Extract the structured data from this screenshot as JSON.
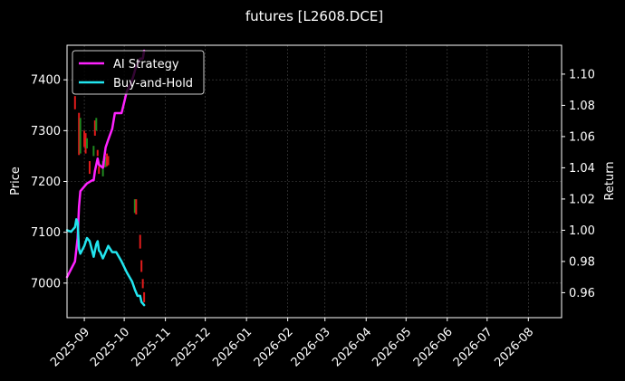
{
  "chart_data": {
    "type": "line",
    "title": "futures [L2608.DCE]",
    "xlabel": "",
    "ylabel": "Price",
    "y2label": "Return",
    "x_ticks": [
      "2025-09",
      "2025-10",
      "2025-11",
      "2025-12",
      "2026-01",
      "2026-02",
      "2026-03",
      "2026-04",
      "2026-05",
      "2026-06",
      "2026-07",
      "2026-08"
    ],
    "y_ticks": [
      7000,
      7100,
      7200,
      7300,
      7400
    ],
    "y2_ticks": [
      "0.96",
      "0.98",
      "1.00",
      "1.02",
      "1.04",
      "1.06",
      "1.08",
      "1.10"
    ],
    "ylim": [
      6932,
      7468
    ],
    "y2lim": [
      0.944,
      1.1185
    ],
    "xlim": [
      "2025-08-19",
      "2026-08-26"
    ],
    "grid": true,
    "legend_placement": "top-left",
    "colors": {
      "background": "#000000",
      "up_candle": "#1f8a1f",
      "down_candle": "#e01b1b",
      "ai_strategy": "#ff22ff",
      "buy_and_hold": "#22e5ef",
      "grid": "#4a4a4a",
      "text": "#ffffff"
    },
    "candles": [
      {
        "date": "2025-08-25",
        "open": 7368,
        "close": 7342
      },
      {
        "date": "2025-08-28",
        "open": 7335,
        "close": 7252
      },
      {
        "date": "2025-08-29",
        "open": 7255,
        "close": 7325
      },
      {
        "date": "2025-09-01",
        "open": 7300,
        "close": 7268
      },
      {
        "date": "2025-09-02",
        "open": 7295,
        "close": 7255
      },
      {
        "date": "2025-09-03",
        "open": 7265,
        "close": 7285
      },
      {
        "date": "2025-09-05",
        "open": 7240,
        "close": 7215
      },
      {
        "date": "2025-09-08",
        "open": 7250,
        "close": 7270
      },
      {
        "date": "2025-09-09",
        "open": 7320,
        "close": 7290
      },
      {
        "date": "2025-09-10",
        "open": 7300,
        "close": 7325
      },
      {
        "date": "2025-09-11",
        "open": 7262,
        "close": 7250
      },
      {
        "date": "2025-09-12",
        "open": 7230,
        "close": 7215
      },
      {
        "date": "2025-09-15",
        "open": 7210,
        "close": 7240
      },
      {
        "date": "2025-09-16",
        "open": 7248,
        "close": 7228
      },
      {
        "date": "2025-09-17",
        "open": 7228,
        "close": 7248
      },
      {
        "date": "2025-09-18",
        "open": 7255,
        "close": 7230
      },
      {
        "date": "2025-09-19",
        "open": 7250,
        "close": 7232
      },
      {
        "date": "2025-10-09",
        "open": 7138,
        "close": 7165
      },
      {
        "date": "2025-10-10",
        "open": 7165,
        "close": 7135
      },
      {
        "date": "2025-10-13",
        "open": 7095,
        "close": 7068
      },
      {
        "date": "2025-10-14",
        "open": 7045,
        "close": 7022
      },
      {
        "date": "2025-10-15",
        "open": 7008,
        "close": 6990
      },
      {
        "date": "2025-10-16",
        "open": 6982,
        "close": 6962
      }
    ],
    "series": [
      {
        "name": "AI Strategy",
        "x": [
          "2025-08-19",
          "2025-08-22",
          "2025-08-25",
          "2025-08-27",
          "2025-08-28",
          "2025-08-29",
          "2025-09-01",
          "2025-09-03",
          "2025-09-05",
          "2025-09-07",
          "2025-09-08",
          "2025-09-09",
          "2025-09-10",
          "2025-09-11",
          "2025-09-12",
          "2025-09-15",
          "2025-09-17",
          "2025-09-19",
          "2025-09-22",
          "2025-09-24",
          "2025-09-26",
          "2025-09-29",
          "2025-10-01",
          "2025-10-03",
          "2025-10-06",
          "2025-10-08",
          "2025-10-10",
          "2025-10-13",
          "2025-10-15",
          "2025-10-16"
        ],
        "values": [
          0.97,
          0.975,
          0.98,
          0.995,
          1.015,
          1.025,
          1.028,
          1.03,
          1.031,
          1.032,
          1.032,
          1.038,
          1.042,
          1.046,
          1.042,
          1.04,
          1.053,
          1.058,
          1.065,
          1.075,
          1.075,
          1.075,
          1.082,
          1.089,
          1.094,
          1.099,
          1.105,
          1.11,
          1.11,
          1.115
        ]
      },
      {
        "name": "Buy-and-Hold",
        "x": [
          "2025-08-19",
          "2025-08-22",
          "2025-08-25",
          "2025-08-26",
          "2025-08-27",
          "2025-08-28",
          "2025-08-29",
          "2025-09-01",
          "2025-09-03",
          "2025-09-05",
          "2025-09-08",
          "2025-09-10",
          "2025-09-11",
          "2025-09-12",
          "2025-09-13",
          "2025-09-15",
          "2025-09-17",
          "2025-09-19",
          "2025-09-22",
          "2025-09-25",
          "2025-09-29",
          "2025-10-03",
          "2025-10-07",
          "2025-10-09",
          "2025-10-11",
          "2025-10-13",
          "2025-10-14",
          "2025-10-15",
          "2025-10-16"
        ],
        "values": [
          1.0,
          0.999,
          1.002,
          1.007,
          1.005,
          0.988,
          0.985,
          0.99,
          0.995,
          0.993,
          0.983,
          0.991,
          0.993,
          0.987,
          0.986,
          0.982,
          0.986,
          0.99,
          0.986,
          0.986,
          0.98,
          0.973,
          0.967,
          0.962,
          0.958,
          0.958,
          0.954,
          0.953,
          0.952
        ]
      }
    ]
  }
}
